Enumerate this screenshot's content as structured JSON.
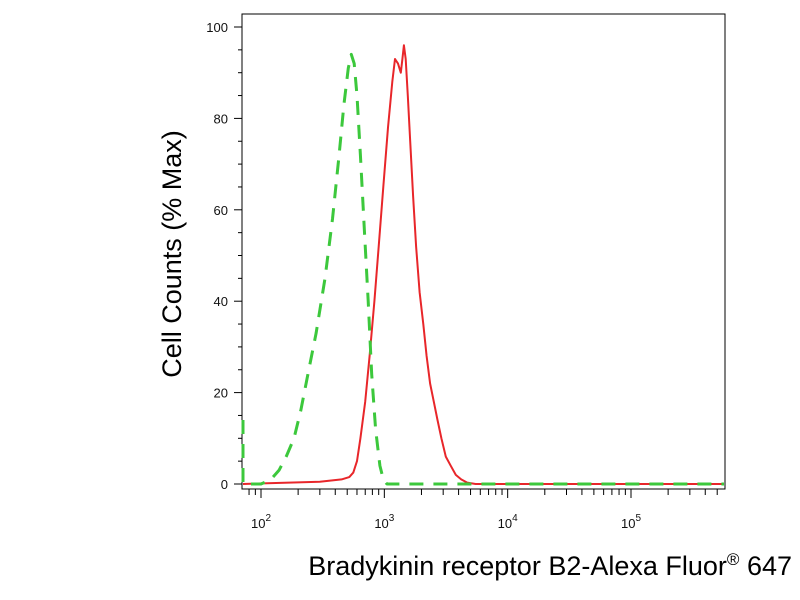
{
  "chart_data": {
    "type": "line",
    "xlabel": "Bradykinin receptor B2-Alexa Fluor",
    "xlabel_superscript": "®",
    "xlabel_suffix": "647",
    "ylabel": "Cell Counts (% Max)",
    "x_scale": "log",
    "xlim": [
      60,
      600000
    ],
    "ylim": [
      0,
      105
    ],
    "x_ticks": [
      {
        "base": "10",
        "exp": "2",
        "value": 100
      },
      {
        "base": "10",
        "exp": "3",
        "value": 1000
      },
      {
        "base": "10",
        "exp": "4",
        "value": 10000
      },
      {
        "base": "10",
        "exp": "5",
        "value": 100000
      }
    ],
    "y_ticks": [
      0,
      20,
      40,
      60,
      80,
      100
    ],
    "grid": false,
    "legend": "none",
    "series": [
      {
        "color": "#e8262a",
        "style": "solid",
        "points": [
          [
            60,
            0
          ],
          [
            300,
            0.5
          ],
          [
            450,
            1
          ],
          [
            520,
            1.5
          ],
          [
            560,
            2.5
          ],
          [
            600,
            5
          ],
          [
            640,
            10
          ],
          [
            700,
            18
          ],
          [
            760,
            28
          ],
          [
            830,
            40
          ],
          [
            900,
            52
          ],
          [
            980,
            65
          ],
          [
            1070,
            78
          ],
          [
            1160,
            88
          ],
          [
            1220,
            93
          ],
          [
            1290,
            92
          ],
          [
            1360,
            90
          ],
          [
            1400,
            93
          ],
          [
            1440,
            96
          ],
          [
            1490,
            93
          ],
          [
            1550,
            85
          ],
          [
            1620,
            75
          ],
          [
            1710,
            63
          ],
          [
            1810,
            52
          ],
          [
            1930,
            42
          ],
          [
            2070,
            35
          ],
          [
            2200,
            28
          ],
          [
            2350,
            22
          ],
          [
            2520,
            18
          ],
          [
            2700,
            14
          ],
          [
            2900,
            10
          ],
          [
            3150,
            6
          ],
          [
            3450,
            4
          ],
          [
            3800,
            2
          ],
          [
            4200,
            1
          ],
          [
            4700,
            0.3
          ],
          [
            5500,
            0
          ],
          [
            600000,
            0
          ]
        ]
      },
      {
        "color": "#3cc83c",
        "style": "dashed",
        "points": [
          [
            60,
            14
          ],
          [
            63,
            8
          ],
          [
            66,
            3
          ],
          [
            70,
            0
          ],
          [
            100,
            0
          ],
          [
            110,
            0.5
          ],
          [
            125,
            1.5
          ],
          [
            140,
            3
          ],
          [
            160,
            6
          ],
          [
            185,
            10
          ],
          [
            210,
            16
          ],
          [
            240,
            24
          ],
          [
            280,
            33
          ],
          [
            330,
            45
          ],
          [
            380,
            58
          ],
          [
            430,
            72
          ],
          [
            470,
            83
          ],
          [
            510,
            91
          ],
          [
            540,
            94
          ],
          [
            570,
            92
          ],
          [
            600,
            85
          ],
          [
            640,
            72
          ],
          [
            690,
            55
          ],
          [
            740,
            40
          ],
          [
            790,
            24
          ],
          [
            850,
            12
          ],
          [
            920,
            4
          ],
          [
            980,
            1
          ],
          [
            1050,
            0
          ],
          [
            600000,
            0
          ]
        ]
      }
    ]
  }
}
